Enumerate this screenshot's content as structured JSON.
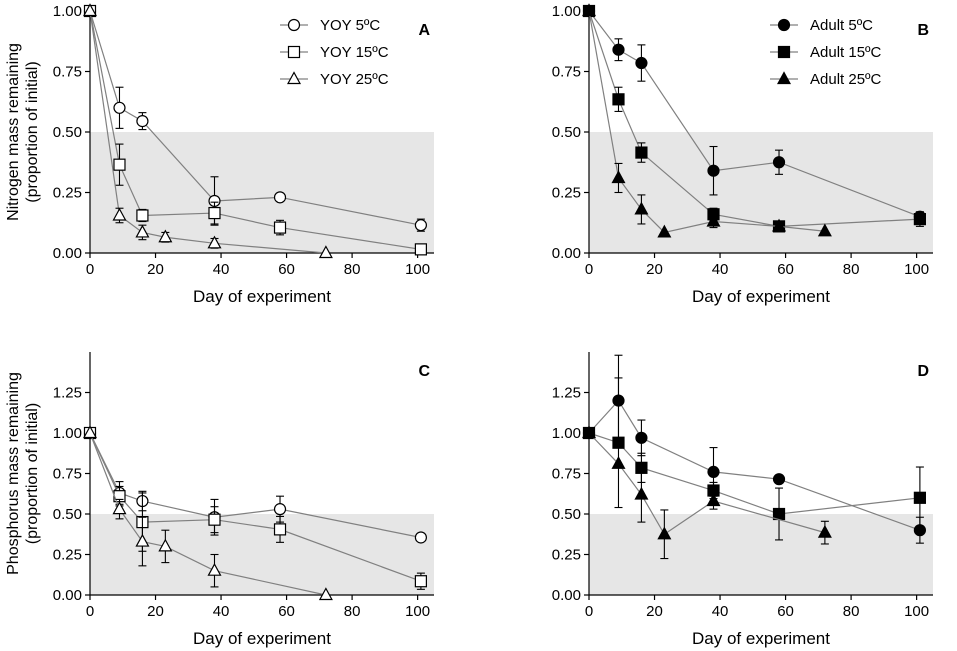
{
  "figure": {
    "xlabel": "Day of experiment",
    "shade_below": 0.5,
    "shade_color": "#e6e6e6",
    "line_color": "#808080",
    "mark_color": "#000000"
  },
  "chart_data": [
    {
      "type": "line",
      "panel": "A",
      "ylabel": [
        "Nitrogen mass remaining",
        "(proportion of initial)"
      ],
      "xlim": [
        0,
        105
      ],
      "ylim": [
        0,
        1.0
      ],
      "xticks": [
        0,
        20,
        40,
        60,
        80,
        100
      ],
      "yticks": [
        0.0,
        0.25,
        0.5,
        0.75,
        1.0
      ],
      "ytick_labels": [
        "0.00",
        "0.25",
        "0.50",
        "0.75",
        "1.00"
      ],
      "legend_position": "top-right",
      "series": [
        {
          "name": "YOY 5ºC",
          "marker": "circle",
          "fill": "open",
          "x": [
            0,
            9,
            16,
            38,
            58,
            101
          ],
          "y": [
            1.0,
            0.6,
            0.545,
            0.215,
            0.23,
            0.115
          ],
          "err": [
            0.0,
            0.085,
            0.035,
            0.1,
            0.0,
            0.025
          ]
        },
        {
          "name": "YOY 15ºC",
          "marker": "square",
          "fill": "open",
          "x": [
            0,
            9,
            16,
            38,
            58,
            101
          ],
          "y": [
            1.0,
            0.365,
            0.155,
            0.165,
            0.105,
            0.015
          ],
          "err": [
            0.0,
            0.085,
            0.025,
            0.045,
            0.03,
            0.0
          ]
        },
        {
          "name": "YOY 25ºC",
          "marker": "triangle",
          "fill": "open",
          "x": [
            0,
            9,
            16,
            23,
            38,
            72
          ],
          "y": [
            1.0,
            0.155,
            0.085,
            0.065,
            0.04,
            0.0
          ],
          "err": [
            0.0,
            0.03,
            0.03,
            0.02,
            0.02,
            0.0
          ]
        }
      ]
    },
    {
      "type": "line",
      "panel": "B",
      "ylabel": [],
      "xlim": [
        0,
        105
      ],
      "ylim": [
        0,
        1.0
      ],
      "xticks": [
        0,
        20,
        40,
        60,
        80,
        100
      ],
      "yticks": [
        0.0,
        0.25,
        0.5,
        0.75,
        1.0
      ],
      "ytick_labels": [
        "0.00",
        "0.25",
        "0.50",
        "0.75",
        "1.00"
      ],
      "legend_position": "top-right",
      "series": [
        {
          "name": "Adult 5ºC",
          "marker": "circle",
          "fill": "filled",
          "x": [
            0,
            9,
            16,
            38,
            58,
            101
          ],
          "y": [
            1.0,
            0.84,
            0.785,
            0.34,
            0.375,
            0.15
          ],
          "err": [
            0.0,
            0.045,
            0.075,
            0.1,
            0.05,
            0.02
          ]
        },
        {
          "name": "Adult 15ºC",
          "marker": "square",
          "fill": "filled",
          "x": [
            0,
            9,
            16,
            38,
            58,
            101
          ],
          "y": [
            1.0,
            0.635,
            0.415,
            0.16,
            0.11,
            0.14
          ],
          "err": [
            0.0,
            0.05,
            0.04,
            0.025,
            0.0,
            0.03
          ]
        },
        {
          "name": "Adult 25ºC",
          "marker": "triangle",
          "fill": "filled",
          "x": [
            0,
            9,
            16,
            23,
            38,
            58,
            72
          ],
          "y": [
            1.0,
            0.31,
            0.18,
            0.085,
            0.13,
            0.11,
            0.09
          ],
          "err": [
            0.0,
            0.06,
            0.06,
            0.0,
            0.025,
            0.0,
            0.0
          ]
        }
      ]
    },
    {
      "type": "line",
      "panel": "C",
      "ylabel": [
        "Phosphorus mass remaining",
        "(proportion of initial)"
      ],
      "xlim": [
        0,
        105
      ],
      "ylim": [
        0,
        1.5
      ],
      "xticks": [
        0,
        20,
        40,
        60,
        80,
        100
      ],
      "yticks": [
        0.0,
        0.25,
        0.5,
        0.75,
        1.0,
        1.25
      ],
      "ytick_labels": [
        "0.00",
        "0.25",
        "0.50",
        "0.75",
        "1.00",
        "1.25"
      ],
      "legend_position": "none",
      "series": [
        {
          "name": "YOY 5ºC",
          "marker": "circle",
          "fill": "open",
          "x": [
            0,
            9,
            16,
            38,
            58,
            101
          ],
          "y": [
            1.0,
            0.63,
            0.58,
            0.48,
            0.53,
            0.355
          ],
          "err": [
            0.0,
            0.07,
            0.06,
            0.11,
            0.08,
            0.0
          ]
        },
        {
          "name": "YOY 15ºC",
          "marker": "square",
          "fill": "open",
          "x": [
            0,
            9,
            16,
            38,
            58,
            101
          ],
          "y": [
            1.0,
            0.61,
            0.45,
            0.465,
            0.405,
            0.085
          ],
          "err": [
            0.0,
            0.06,
            0.18,
            0.08,
            0.08,
            0.05
          ]
        },
        {
          "name": "YOY 25ºC",
          "marker": "triangle",
          "fill": "open",
          "x": [
            0,
            9,
            16,
            23,
            38,
            72
          ],
          "y": [
            1.0,
            0.53,
            0.33,
            0.3,
            0.15,
            0.0
          ],
          "err": [
            0.0,
            0.06,
            0.15,
            0.1,
            0.1,
            0.0
          ]
        }
      ]
    },
    {
      "type": "line",
      "panel": "D",
      "ylabel": [],
      "xlim": [
        0,
        105
      ],
      "ylim": [
        0,
        1.5
      ],
      "xticks": [
        0,
        20,
        40,
        60,
        80,
        100
      ],
      "yticks": [
        0.0,
        0.25,
        0.5,
        0.75,
        1.0,
        1.25
      ],
      "ytick_labels": [
        "0.00",
        "0.25",
        "0.50",
        "0.75",
        "1.00",
        "1.25"
      ],
      "legend_position": "none",
      "series": [
        {
          "name": "Adult 5ºC",
          "marker": "circle",
          "fill": "filled",
          "x": [
            0,
            9,
            16,
            38,
            58,
            101
          ],
          "y": [
            1.0,
            1.2,
            0.97,
            0.76,
            0.715,
            0.4
          ],
          "err": [
            0.0,
            0.28,
            0.11,
            0.15,
            0.0,
            0.08
          ]
        },
        {
          "name": "Adult 15ºC",
          "marker": "square",
          "fill": "filled",
          "x": [
            0,
            9,
            16,
            38,
            58,
            101
          ],
          "y": [
            1.0,
            0.94,
            0.785,
            0.645,
            0.5,
            0.6
          ],
          "err": [
            0.0,
            0.4,
            0.09,
            0.05,
            0.16,
            0.19
          ]
        },
        {
          "name": "Adult 25ºC",
          "marker": "triangle",
          "fill": "filled",
          "x": [
            0,
            9,
            16,
            23,
            38,
            72
          ],
          "y": [
            1.0,
            0.81,
            0.62,
            0.375,
            0.58,
            0.385
          ],
          "err": [
            0.0,
            0.0,
            0.17,
            0.15,
            0.05,
            0.07
          ]
        }
      ]
    }
  ]
}
